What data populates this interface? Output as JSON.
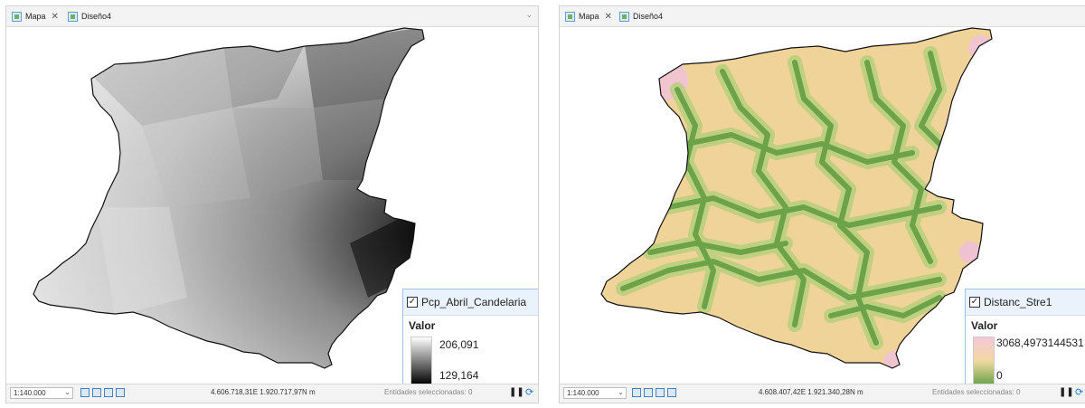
{
  "left": {
    "tabs": [
      {
        "label": "Mapa",
        "closable": true,
        "icon": "map-icon"
      },
      {
        "label": "Diseño4",
        "closable": false,
        "icon": "layout-icon"
      }
    ],
    "legend": {
      "layer": "Pcp_Abril_Candelaria",
      "checked": true,
      "field": "Valor",
      "high": "206,091",
      "low": "129,164",
      "colors": [
        "#ffffff",
        "#000000"
      ]
    },
    "status": {
      "scale": "1:140.000",
      "coords": "4.606.718,31E 1.920.717,97N m",
      "selected": "Entidades seleccionadas: 0"
    }
  },
  "right": {
    "tabs": [
      {
        "label": "Mapa",
        "closable": true,
        "icon": "map-icon"
      },
      {
        "label": "Diseño4",
        "closable": false,
        "icon": "layout-icon"
      }
    ],
    "legend": {
      "layer": "Distanc_Stre1",
      "checked": true,
      "field": "Valor",
      "high": "3068,4973144531",
      "low": "0",
      "colors": [
        "#f5c6d8",
        "#f2d9a0",
        "#6ca34a"
      ]
    },
    "status": {
      "scale": "1:140.000",
      "coords": "4.608.407,42E 1.921.340,28N m",
      "selected": "Entidades seleccionadas: 0"
    }
  }
}
